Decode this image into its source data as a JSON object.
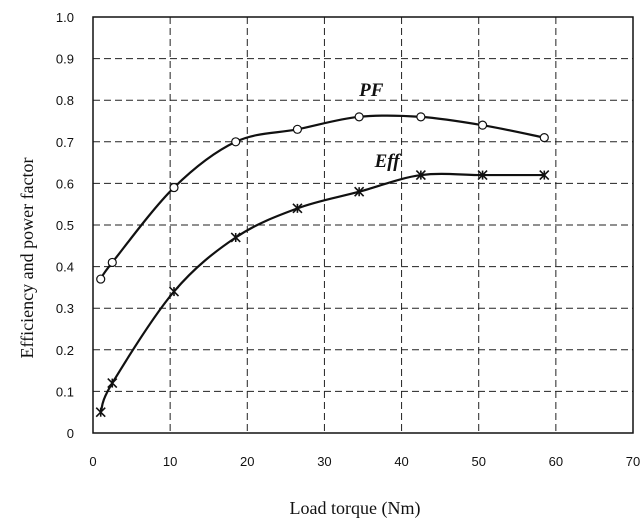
{
  "chart_data": {
    "type": "line",
    "title": "",
    "xlabel": "Load torque (Nm)",
    "ylabel": "Efficiency and power factor",
    "xlim": [
      0,
      70
    ],
    "ylim": [
      0,
      1.0
    ],
    "x_ticks": [
      0,
      10,
      20,
      30,
      40,
      50,
      60,
      70
    ],
    "y_ticks": [
      0,
      0.1,
      0.2,
      0.3,
      0.4,
      0.5,
      0.6,
      0.7,
      0.8,
      0.9,
      1.0
    ],
    "x_tick_labels": [
      "0",
      "10",
      "20",
      "30",
      "40",
      "50",
      "60",
      "70"
    ],
    "y_tick_labels": [
      "0",
      "0.1",
      "0.2",
      "0.3",
      "0.4",
      "0.5",
      "0.6",
      "0.7",
      "0.8",
      "0.9",
      "1.0"
    ],
    "grid": true,
    "series": [
      {
        "name": "PF",
        "marker": "circle",
        "x": [
          1,
          2.5,
          10.5,
          18.5,
          26.5,
          34.5,
          42.5,
          50.5,
          58.5
        ],
        "y": [
          0.37,
          0.41,
          0.59,
          0.7,
          0.73,
          0.76,
          0.76,
          0.74,
          0.71
        ]
      },
      {
        "name": "Eff",
        "marker": "cross",
        "x": [
          1,
          2.5,
          10.5,
          18.5,
          26.5,
          34.5,
          42.5,
          50.5,
          58.5
        ],
        "y": [
          0.05,
          0.12,
          0.34,
          0.47,
          0.54,
          0.58,
          0.62,
          0.62,
          0.62
        ]
      }
    ]
  }
}
